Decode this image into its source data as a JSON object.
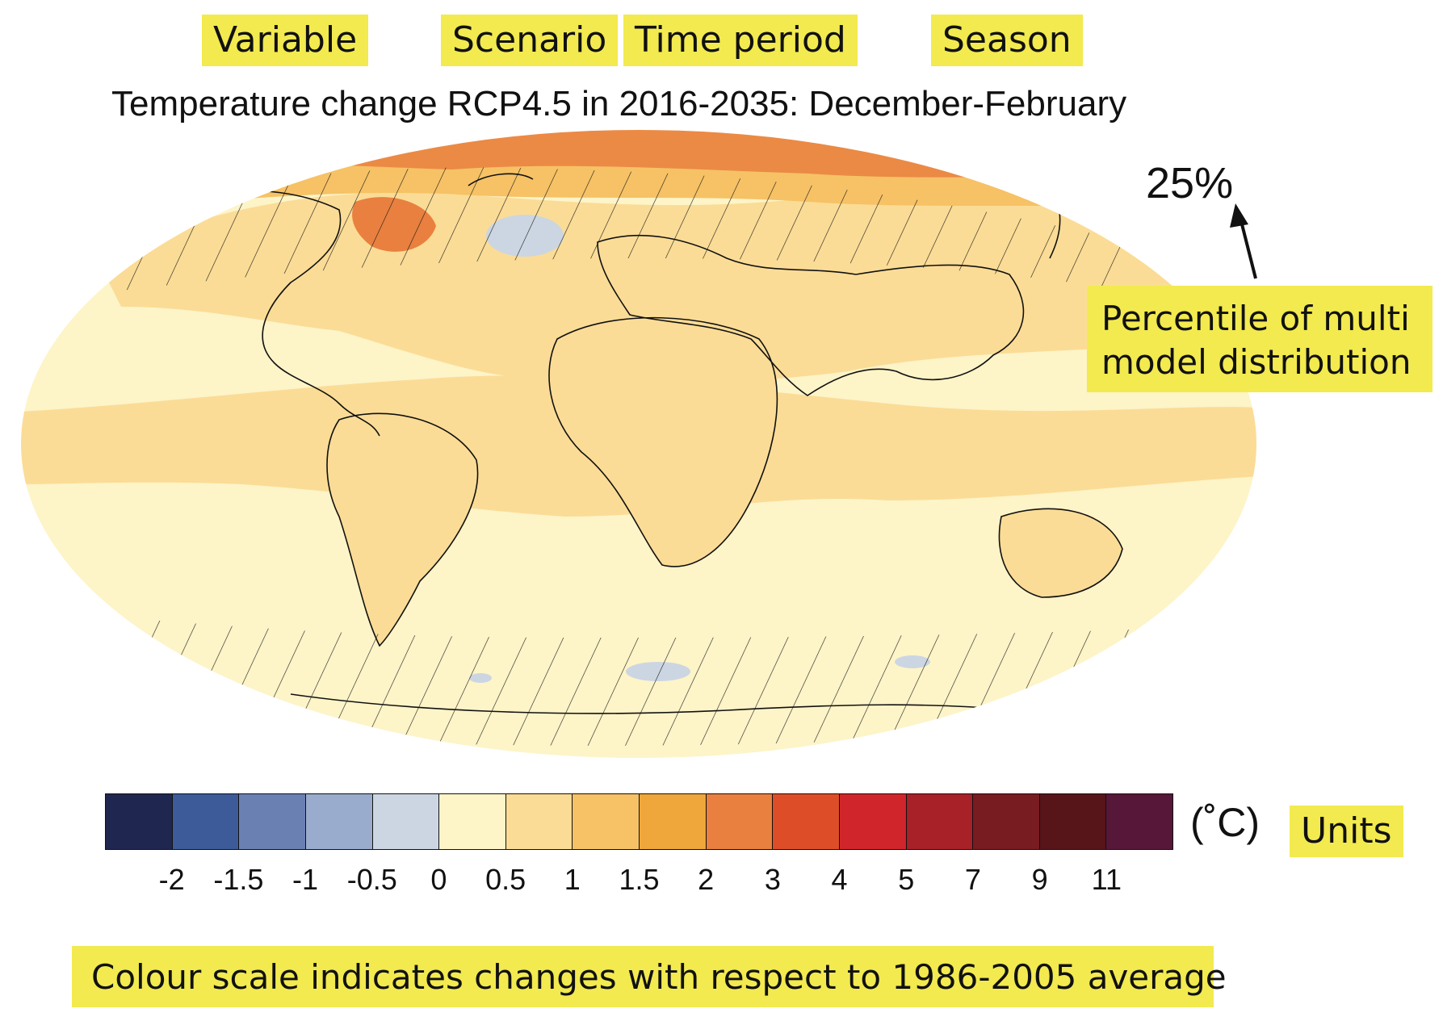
{
  "labels": {
    "variable": "Variable",
    "scenario": "Scenario",
    "time_period": "Time period",
    "season": "Season",
    "units": "Units"
  },
  "title": "Temperature change RCP4.5 in 2016-2035: December-February",
  "percentile": {
    "value": "25%",
    "label_line1": "Percentile of multi",
    "label_line2": "model distribution"
  },
  "colorbar": {
    "unit": "(˚C)",
    "ticks": [
      "-2",
      "-1.5",
      "-1",
      "-0.5",
      "0",
      "0.5",
      "1",
      "1.5",
      "2",
      "3",
      "4",
      "5",
      "7",
      "9",
      "11"
    ],
    "colors": [
      "#1f2650",
      "#3d5b99",
      "#6b80b2",
      "#9aaccd",
      "#ccd6e2",
      "#fdf4c8",
      "#fbdc96",
      "#f6c265",
      "#efa73b",
      "#e9803f",
      "#dd4e28",
      "#d0262b",
      "#a82128",
      "#781c22",
      "#571519",
      "#561739"
    ]
  },
  "note": "Colour scale indicates changes with respect to 1986-2005 average",
  "map": {
    "projection": "Robinson",
    "dominant_band": "0.5–1 °C over most of ocean and land",
    "hatching": "stippled diagonal hatching over high-latitude and North Atlantic regions"
  }
}
